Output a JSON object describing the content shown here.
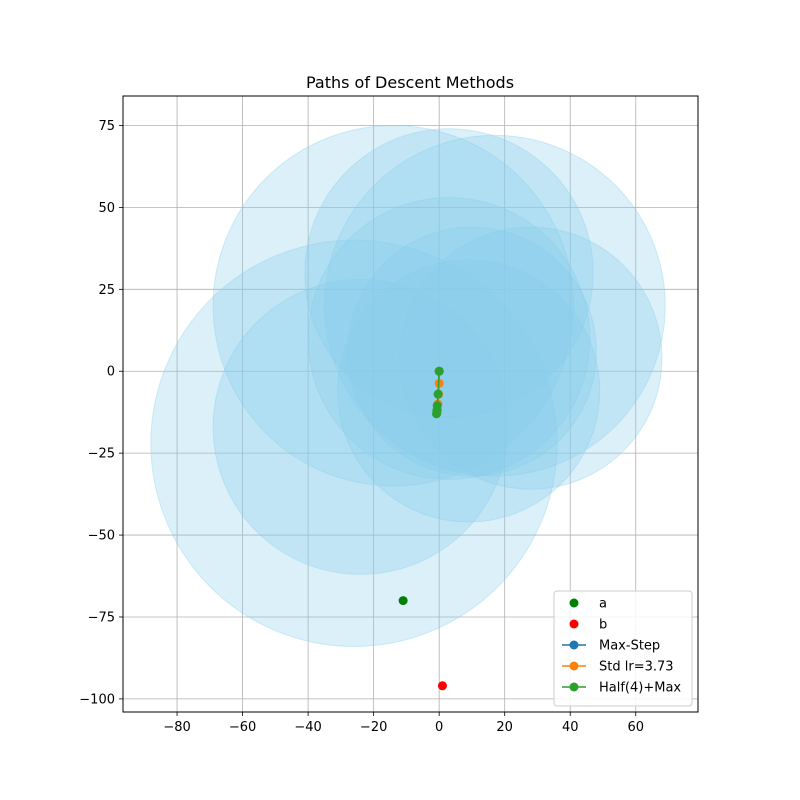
{
  "chart_data": {
    "type": "scatter",
    "title": "Paths of Descent Methods",
    "xlabel": "",
    "ylabel": "",
    "xlim": [
      -96.5,
      79
    ],
    "ylim": [
      -104,
      84
    ],
    "x_ticks": [
      -80,
      -60,
      -40,
      -20,
      0,
      20,
      40,
      60
    ],
    "y_ticks": [
      -100,
      -75,
      -50,
      -25,
      0,
      25,
      50,
      75
    ],
    "x_tick_labels": [
      "−80",
      "−60",
      "−40",
      "−20",
      "0",
      "20",
      "40",
      "60"
    ],
    "y_tick_labels": [
      "−100",
      "−75",
      "−50",
      "−25",
      "0",
      "25",
      "50",
      "75"
    ],
    "grid": true,
    "legend_position": "lower right",
    "circle_color": "#87ceeb",
    "circles": [
      {
        "cx": -14,
        "cy": 20,
        "r": 55
      },
      {
        "cx": 3,
        "cy": 30,
        "r": 44
      },
      {
        "cx": 17,
        "cy": 20,
        "r": 52
      },
      {
        "cx": 3,
        "cy": 10,
        "r": 43
      },
      {
        "cx": 28,
        "cy": 4,
        "r": 40
      },
      {
        "cx": 10,
        "cy": 6,
        "r": 38
      },
      {
        "cx": 9,
        "cy": -6,
        "r": 40
      },
      {
        "cx": -24,
        "cy": -17,
        "r": 45
      },
      {
        "cx": -26,
        "cy": -22,
        "r": 62
      }
    ],
    "series": [
      {
        "name": "a",
        "type": "points",
        "color": "#008000",
        "points": [
          [
            -11,
            -70
          ]
        ]
      },
      {
        "name": "b",
        "type": "points",
        "color": "#ff0000",
        "points": [
          [
            1,
            -96
          ]
        ]
      },
      {
        "name": "Max-Step",
        "type": "line",
        "color": "#1f77b4",
        "points": [
          [
            0,
            0
          ],
          [
            -0.3,
            -7
          ],
          [
            -0.6,
            -12
          ]
        ]
      },
      {
        "name": "Std lr=3.73",
        "type": "line",
        "color": "#ff7f0e",
        "points": [
          [
            0,
            0
          ],
          [
            0,
            -3.7
          ],
          [
            -0.2,
            -7
          ],
          [
            -0.4,
            -10
          ],
          [
            -0.6,
            -12.5
          ]
        ]
      },
      {
        "name": "Half(4)+Max",
        "type": "line",
        "color": "#2ca02c",
        "points": [
          [
            0,
            0
          ],
          [
            -0.3,
            -7
          ],
          [
            -0.6,
            -10.5
          ],
          [
            -0.7,
            -12
          ],
          [
            -0.8,
            -13
          ]
        ]
      }
    ]
  }
}
